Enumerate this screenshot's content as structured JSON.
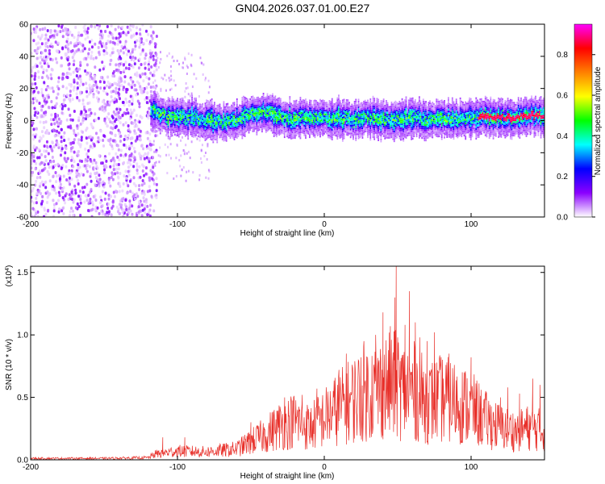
{
  "figure": {
    "title": "GN04.2026.037.01.00.E27"
  },
  "chart_data": [
    {
      "type": "heatmap",
      "xlabel": "Height of straight line (km)",
      "ylabel": "Frequency (Hz)",
      "xlim": [
        -200,
        150
      ],
      "ylim": [
        -60,
        60
      ],
      "xticks": [
        -200,
        -100,
        0,
        100
      ],
      "yticks": [
        -60,
        -40,
        -20,
        0,
        20,
        40,
        60
      ],
      "ytick_labels": [
        "-60",
        "-40",
        "-20",
        "0",
        "20",
        "40",
        "60"
      ],
      "colorbar": {
        "label": "Normalized spectral amplitude",
        "ticks": [
          0.0,
          0.2,
          0.4,
          0.6,
          0.8
        ],
        "tick_labels": [
          "0.0",
          "0.2",
          "0.4",
          "0.6",
          "0.8"
        ],
        "range": [
          0,
          0.95
        ],
        "colormap": [
          "#ffffff",
          "#8b00ff",
          "#0000ff",
          "#00ffff",
          "#00ff00",
          "#ffff00",
          "#ff8000",
          "#ff0000",
          "#ff00ff"
        ]
      },
      "ridge_center_hz": [
        [
          -118,
          6
        ],
        [
          -110,
          4
        ],
        [
          -100,
          2
        ],
        [
          -90,
          2
        ],
        [
          -80,
          0
        ],
        [
          -70,
          -1
        ],
        [
          -60,
          0
        ],
        [
          -50,
          4
        ],
        [
          -40,
          5
        ],
        [
          -30,
          2
        ],
        [
          -20,
          1
        ],
        [
          -10,
          3
        ],
        [
          0,
          1
        ],
        [
          10,
          2
        ],
        [
          20,
          0
        ],
        [
          30,
          2
        ],
        [
          40,
          1
        ],
        [
          50,
          0
        ],
        [
          60,
          2
        ],
        [
          70,
          0
        ],
        [
          80,
          1
        ],
        [
          90,
          1
        ],
        [
          100,
          2
        ],
        [
          110,
          2
        ],
        [
          120,
          2
        ],
        [
          130,
          2
        ],
        [
          140,
          3
        ],
        [
          150,
          3
        ]
      ],
      "noise_region_km": [
        -200,
        -118
      ]
    },
    {
      "type": "line",
      "xlabel": "Height of straight line (km)",
      "ylabel": "SNR (10 * v/v)",
      "scale_label": "(x10",
      "scale_exponent": "4",
      "xlim": [
        -200,
        150
      ],
      "ylim": [
        0,
        1.55
      ],
      "xticks": [
        -200,
        -100,
        0,
        100
      ],
      "yticks": [
        0.0,
        0.5,
        1.0,
        1.5
      ],
      "ytick_labels": [
        "0.0",
        "0.5",
        "1.0",
        "1.5"
      ],
      "series": [
        {
          "color": "#e8302a",
          "envelope": [
            [
              -200,
              0.02
            ],
            [
              -150,
              0.02
            ],
            [
              -120,
              0.03
            ],
            [
              -115,
              0.08
            ],
            [
              -100,
              0.12
            ],
            [
              -80,
              0.11
            ],
            [
              -60,
              0.15
            ],
            [
              -50,
              0.25
            ],
            [
              -40,
              0.35
            ],
            [
              -30,
              0.48
            ],
            [
              -20,
              0.55
            ],
            [
              -10,
              0.45
            ],
            [
              0,
              0.58
            ],
            [
              10,
              0.72
            ],
            [
              20,
              0.85
            ],
            [
              30,
              0.95
            ],
            [
              40,
              1.0
            ],
            [
              48,
              1.05
            ],
            [
              55,
              0.95
            ],
            [
              60,
              0.98
            ],
            [
              70,
              0.8
            ],
            [
              80,
              0.85
            ],
            [
              90,
              0.8
            ],
            [
              100,
              0.72
            ],
            [
              110,
              0.55
            ],
            [
              120,
              0.45
            ],
            [
              130,
              0.4
            ],
            [
              140,
              0.45
            ],
            [
              150,
              0.4
            ]
          ],
          "peaks": [
            [
              -110,
              0.18
            ],
            [
              -95,
              0.18
            ],
            [
              -50,
              0.3
            ],
            [
              -27,
              0.5
            ],
            [
              -15,
              0.52
            ],
            [
              -5,
              0.57
            ],
            [
              10,
              0.72
            ],
            [
              15,
              0.85
            ],
            [
              25,
              0.82
            ],
            [
              27,
              0.95
            ],
            [
              35,
              1.0
            ],
            [
              40,
              1.18
            ],
            [
              45,
              1.07
            ],
            [
              48,
              1.3
            ],
            [
              49,
              1.56
            ],
            [
              50,
              0.98
            ],
            [
              55,
              1.08
            ],
            [
              58,
              1.35
            ],
            [
              62,
              1.1
            ],
            [
              65,
              0.98
            ],
            [
              70,
              0.95
            ],
            [
              75,
              1.02
            ],
            [
              85,
              0.85
            ],
            [
              100,
              0.82
            ],
            [
              110,
              0.55
            ],
            [
              120,
              0.5
            ],
            [
              125,
              0.58
            ],
            [
              133,
              0.53
            ],
            [
              142,
              0.65
            ],
            [
              147,
              0.6
            ]
          ]
        }
      ]
    }
  ]
}
